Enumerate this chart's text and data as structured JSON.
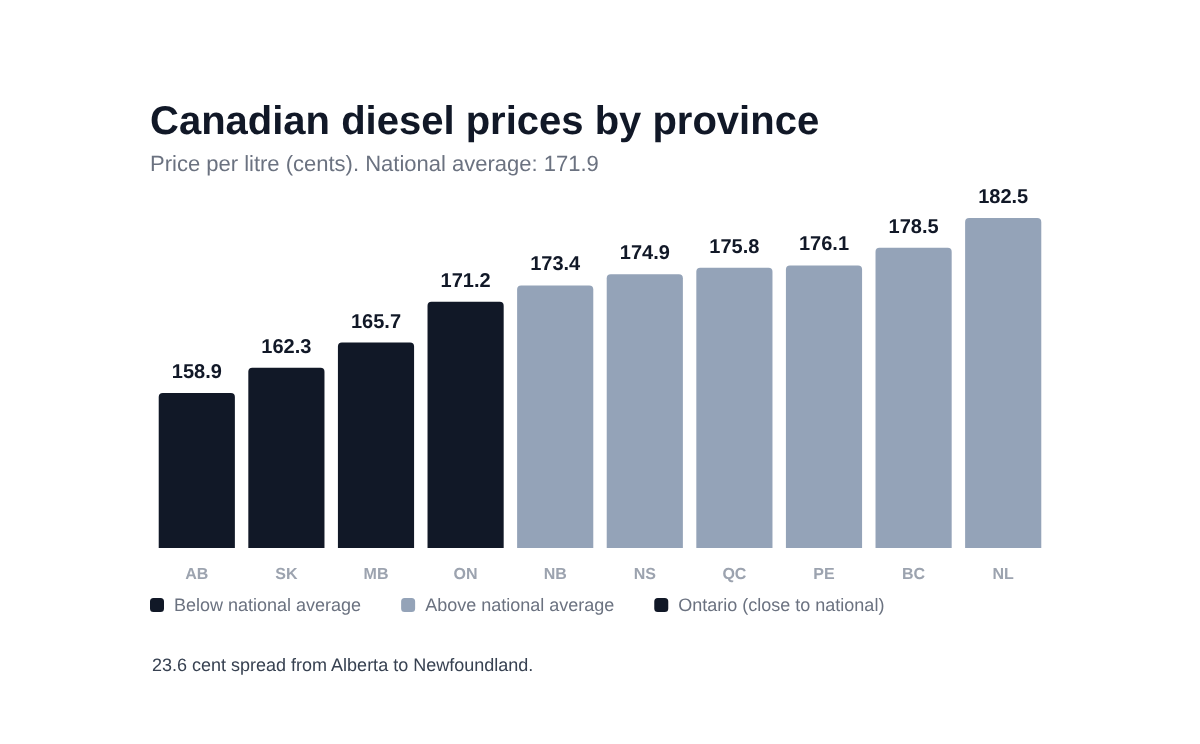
{
  "chart_data": {
    "type": "bar",
    "title": "Canadian diesel prices by province",
    "subtitle": "Price per litre (cents). National average: 171.9",
    "categories": [
      "AB",
      "SK",
      "MB",
      "ON",
      "NB",
      "NS",
      "QC",
      "PE",
      "BC",
      "NL"
    ],
    "series": [
      {
        "name": "Below national average",
        "color": "#111827",
        "values": [
          158.9,
          162.3,
          165.7,
          null,
          null,
          null,
          null,
          null,
          null,
          null
        ]
      },
      {
        "name": "Above national average",
        "color": "#94a3b8",
        "values": [
          null,
          null,
          null,
          null,
          173.4,
          174.9,
          175.8,
          176.1,
          178.5,
          182.5
        ]
      },
      {
        "name": "Ontario (close to national)",
        "color": "#111827",
        "values": [
          null,
          null,
          null,
          171.2,
          null,
          null,
          null,
          null,
          null,
          null
        ]
      }
    ],
    "stacked": true,
    "ylim": [
      138,
      182.5
    ],
    "tick_labels": "x",
    "data_labels": true,
    "grid": false,
    "legend": "bottom left",
    "annotations": [
      "23.6 cent spread from Alberta to Newfoundland."
    ]
  }
}
